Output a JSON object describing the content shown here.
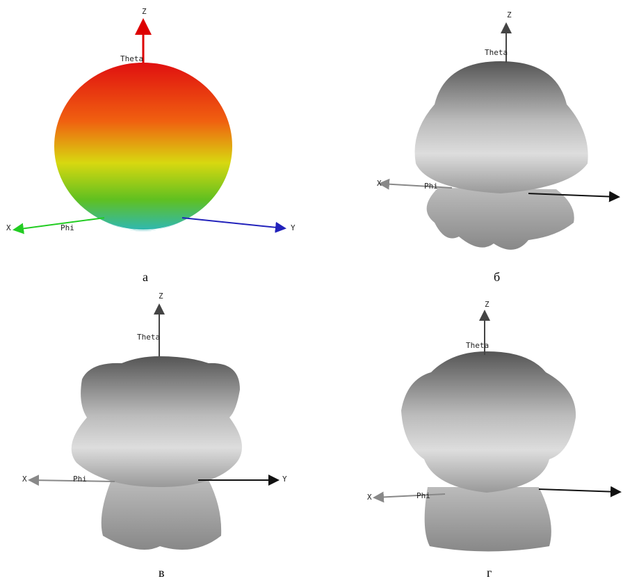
{
  "panels": [
    {
      "caption": "а",
      "axes": {
        "z": "Z",
        "theta": "Theta",
        "x": "X",
        "phi": "Phi",
        "y": "Y"
      }
    },
    {
      "caption": "б",
      "axes": {
        "z": "Z",
        "theta": "Theta",
        "x": "X",
        "phi": "Phi"
      }
    },
    {
      "caption": "в",
      "axes": {
        "z": "Z",
        "theta": "Theta",
        "x": "X",
        "phi": "Phi",
        "y": "Y"
      }
    },
    {
      "caption": "г",
      "axes": {
        "z": "Z",
        "theta": "Theta",
        "x": "X",
        "phi": "Phi"
      }
    }
  ]
}
